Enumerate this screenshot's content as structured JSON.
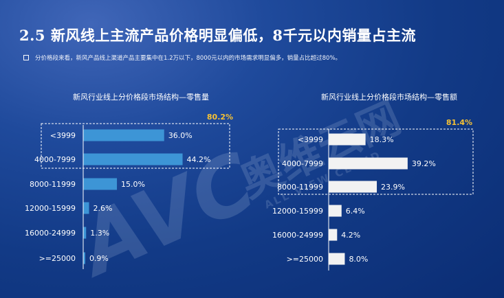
{
  "header": {
    "title": "2.5 新风线上主流产品价格明显偏低，8千元以内销量占主流",
    "bullet_text": "分价格段来看，新风产品线上渠道产品主要集中在1.2万以下，8000元以内的市场需求明显偏多，销量占比超过80%。"
  },
  "watermark": {
    "logo_text": "AVC",
    "brand_cn": "奥维云网",
    "brand_en": "ALL VIEW CLOUD"
  },
  "colors": {
    "volume_bar": "#3d95d6",
    "value_bar": "#f2f2f2",
    "highlight": "#f7c234",
    "axis": "#ffffff"
  },
  "chart_data": [
    {
      "type": "bar",
      "orientation": "horizontal",
      "title": "新风行业线上分价格段市场结构—零售量",
      "categories": [
        "<3999",
        "4000-7999",
        "8000-11999",
        "12000-15999",
        "16000-24999",
        ">=25000"
      ],
      "values": [
        36.0,
        44.2,
        15.0,
        2.6,
        1.3,
        0.9
      ],
      "value_labels": [
        "36.0%",
        "44.2%",
        "15.0%",
        "2.6%",
        "1.3%",
        "0.9%"
      ],
      "xlim": [
        0,
        50
      ],
      "grid": false,
      "highlight_group": {
        "categories": [
          "<3999",
          "4000-7999"
        ],
        "label": "80.2%"
      }
    },
    {
      "type": "bar",
      "orientation": "horizontal",
      "title": "新风行业线上分价格段市场结构—零售额",
      "categories": [
        "<3999",
        "4000-7999",
        "8000-11999",
        "12000-15999",
        "16000-24999",
        ">=25000"
      ],
      "values": [
        18.3,
        39.2,
        23.9,
        6.4,
        4.2,
        8.0
      ],
      "value_labels": [
        "18.3%",
        "39.2%",
        "23.9%",
        "6.4%",
        "4.2%",
        "8.0%"
      ],
      "xlim": [
        0,
        50
      ],
      "grid": false,
      "highlight_group": {
        "categories": [
          "<3999",
          "4000-7999",
          "8000-11999"
        ],
        "label": "81.4%"
      }
    }
  ]
}
